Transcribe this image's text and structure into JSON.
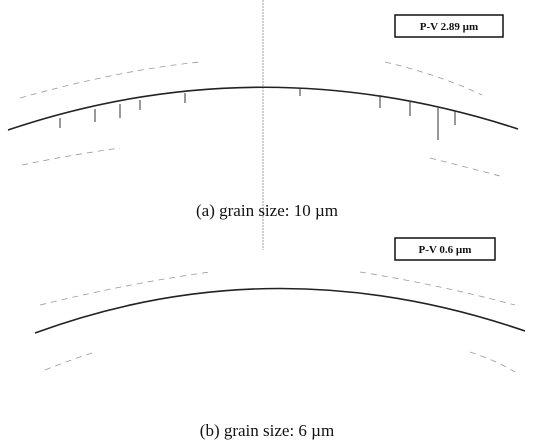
{
  "panels": [
    {
      "label": "P-V 2.89 µm",
      "caption": "(a) grain size: 10 µm"
    },
    {
      "label": "P-V 0.6 µm",
      "caption": "(b) grain size: 6 µm"
    }
  ]
}
